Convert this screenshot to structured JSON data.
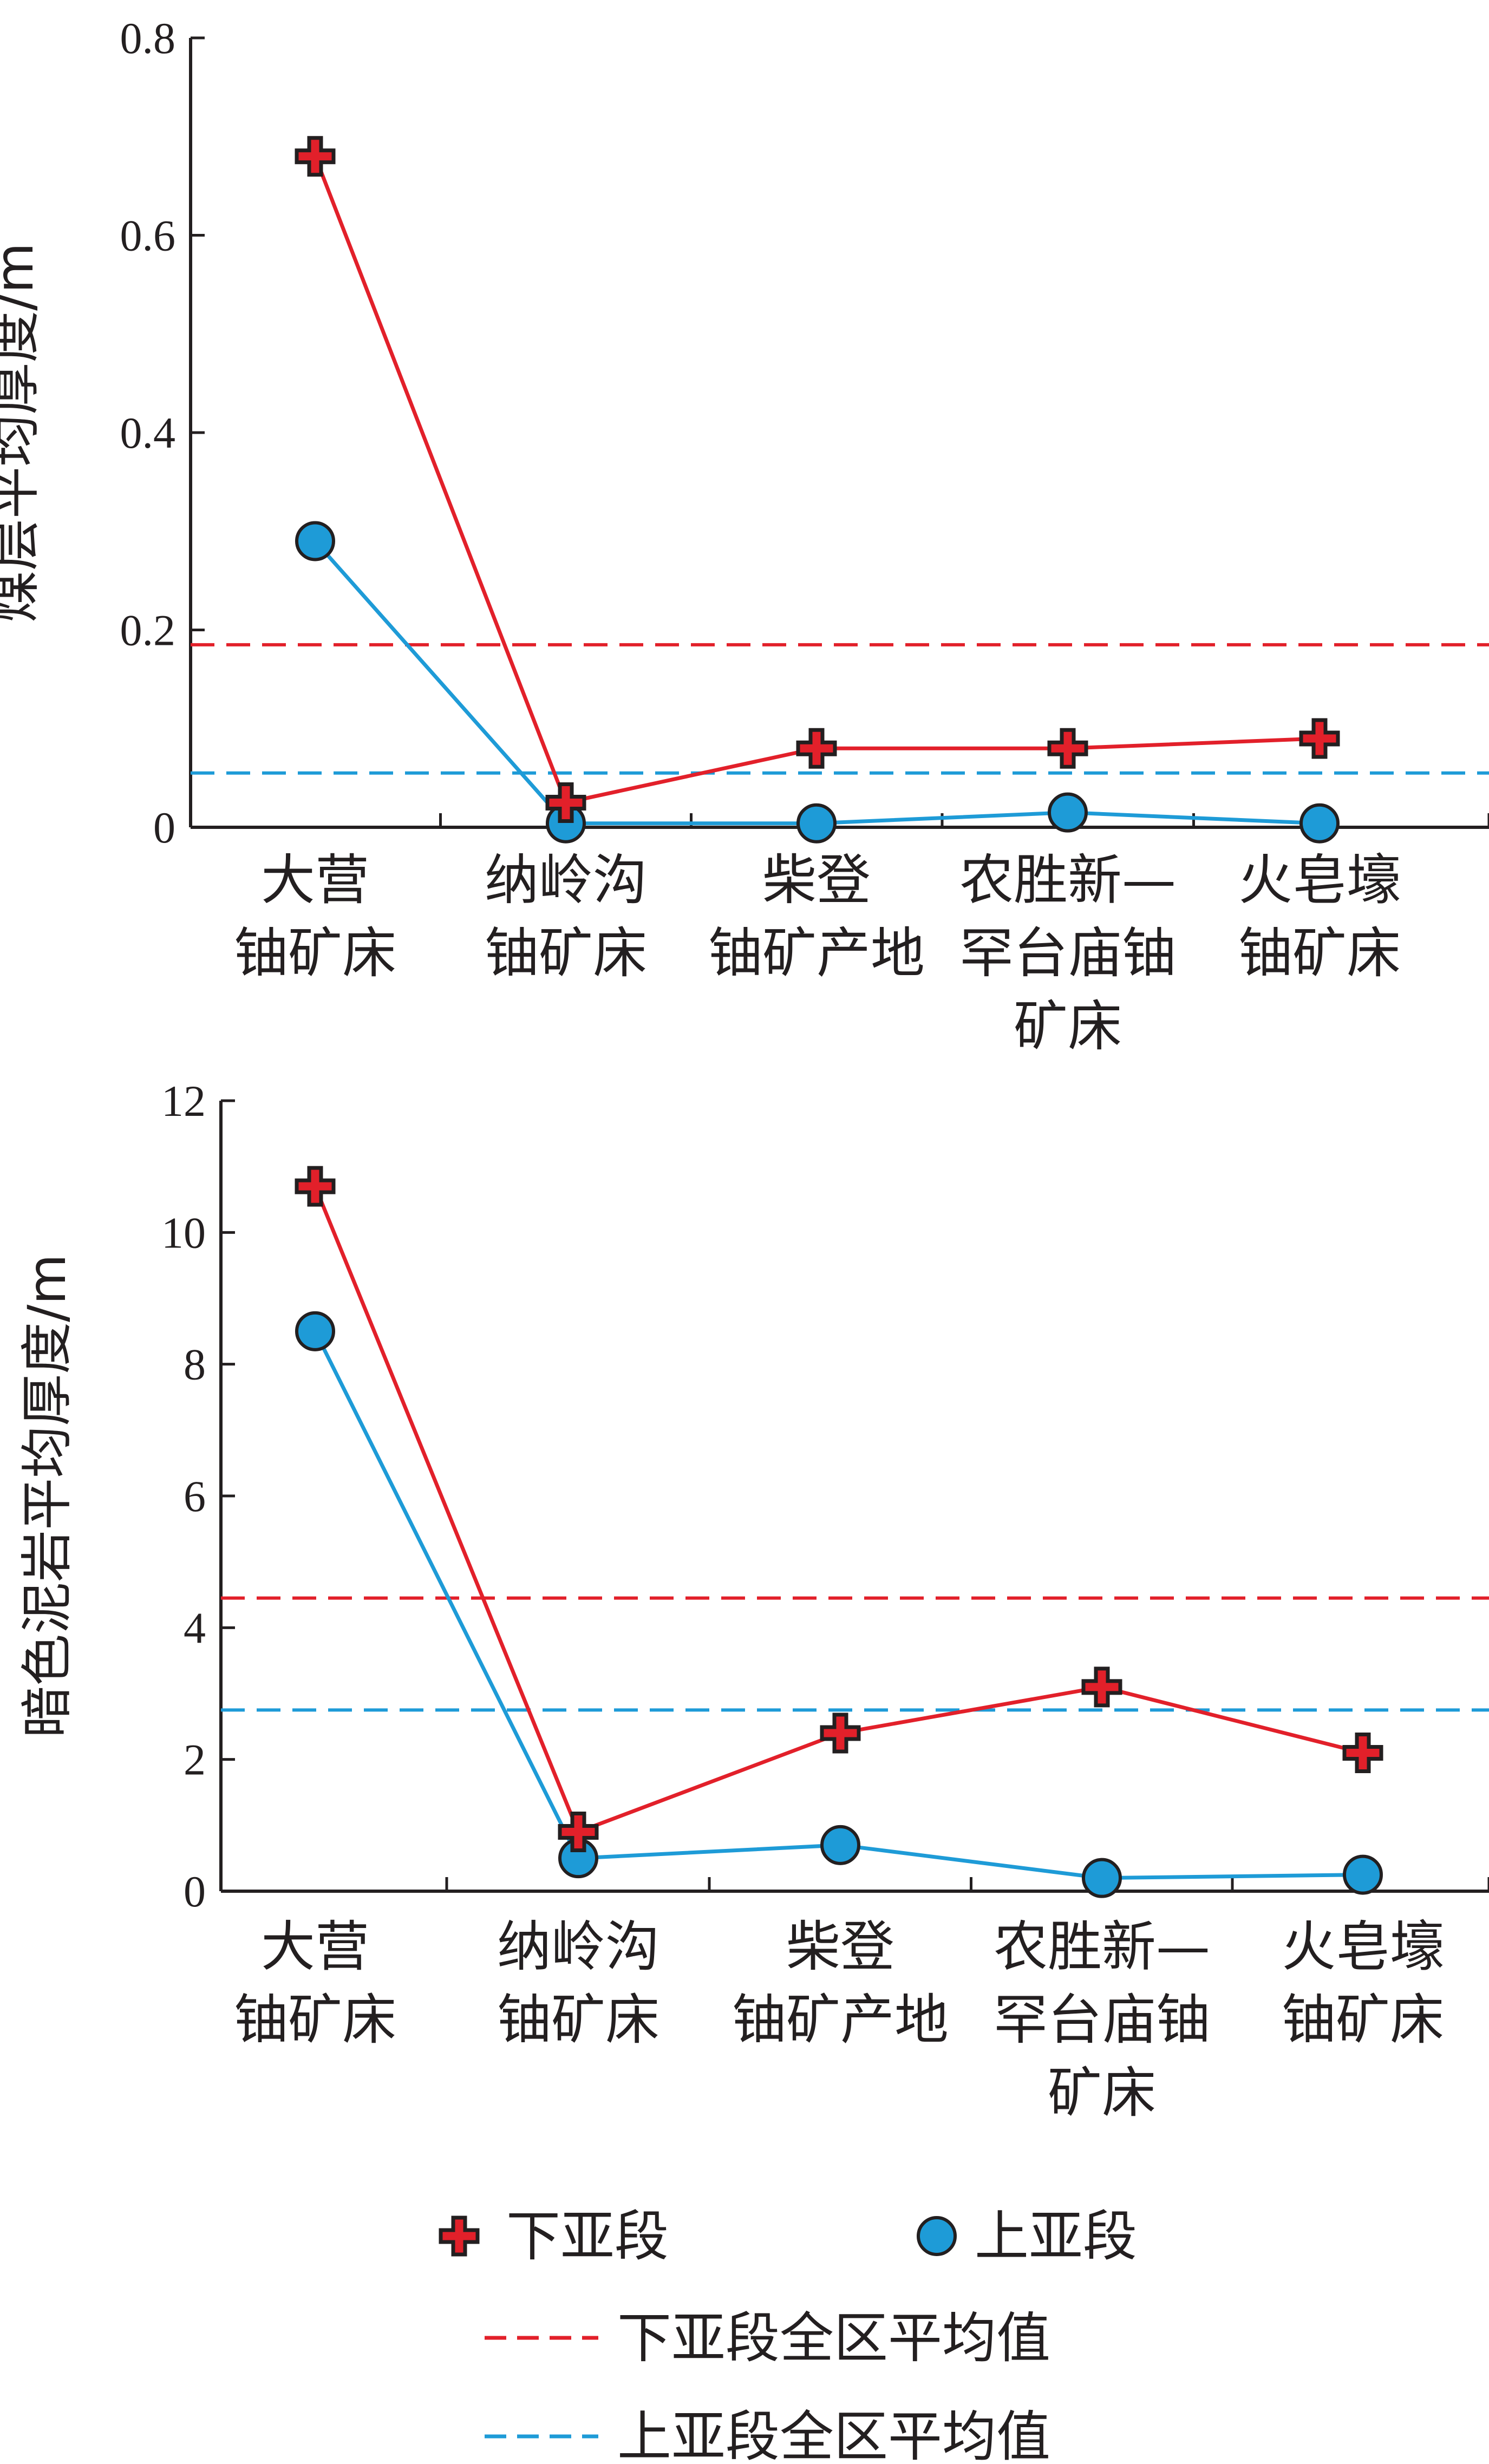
{
  "chart_data": [
    {
      "type": "line",
      "ylabel": "煤层平均厚度/m",
      "ylim": [
        0,
        0.8
      ],
      "yticks": [
        "0",
        "0.2",
        "0.4",
        "0.6",
        "0.8"
      ],
      "categories": [
        [
          "大营",
          "铀矿床"
        ],
        [
          "纳岭沟",
          "铀矿床"
        ],
        [
          "柴登",
          "铀矿产地"
        ],
        [
          "农胜新—",
          "罕台庙铀",
          "矿床"
        ],
        [
          "火皂壕",
          "铀矿床"
        ]
      ],
      "series": [
        {
          "name": "下亚段",
          "values": [
            0.68,
            0.025,
            0.08,
            0.08,
            0.09
          ]
        },
        {
          "name": "上亚段",
          "values": [
            0.29,
            0.004,
            0.004,
            0.015,
            0.004
          ]
        }
      ],
      "reference_lines": [
        {
          "name": "下亚段全区平均值",
          "value": 0.185
        },
        {
          "name": "上亚段全区平均值",
          "value": 0.055
        }
      ],
      "grid": false
    },
    {
      "type": "line",
      "ylabel": "暗色泥岩平均厚度/m",
      "ylim": [
        0,
        12
      ],
      "yticks": [
        "0",
        "2",
        "4",
        "6",
        "8",
        "10",
        "12"
      ],
      "categories": [
        [
          "大营",
          "铀矿床"
        ],
        [
          "纳岭沟",
          "铀矿床"
        ],
        [
          "柴登",
          "铀矿产地"
        ],
        [
          "农胜新—",
          "罕台庙铀",
          "矿床"
        ],
        [
          "火皂壕",
          "铀矿床"
        ]
      ],
      "series": [
        {
          "name": "下亚段",
          "values": [
            10.7,
            0.9,
            2.4,
            3.1,
            2.1
          ]
        },
        {
          "name": "上亚段",
          "values": [
            8.5,
            0.5,
            0.7,
            0.2,
            0.25
          ]
        }
      ],
      "reference_lines": [
        {
          "name": "下亚段全区平均值",
          "value": 4.45
        },
        {
          "name": "上亚段全区平均值",
          "value": 2.75
        }
      ],
      "grid": false
    }
  ],
  "legend": {
    "items": [
      {
        "label": "下亚段",
        "marker": "red-cross"
      },
      {
        "label": "上亚段",
        "marker": "blue-circle"
      },
      {
        "label": "下亚段全区平均值",
        "marker": "red-dashed-line"
      },
      {
        "label": "上亚段全区平均值",
        "marker": "blue-dashed-line"
      }
    ],
    "placement": "bottom"
  },
  "colors": {
    "lower": "#e2202a",
    "upper": "#1e9bd7",
    "axis": "#231f20"
  }
}
